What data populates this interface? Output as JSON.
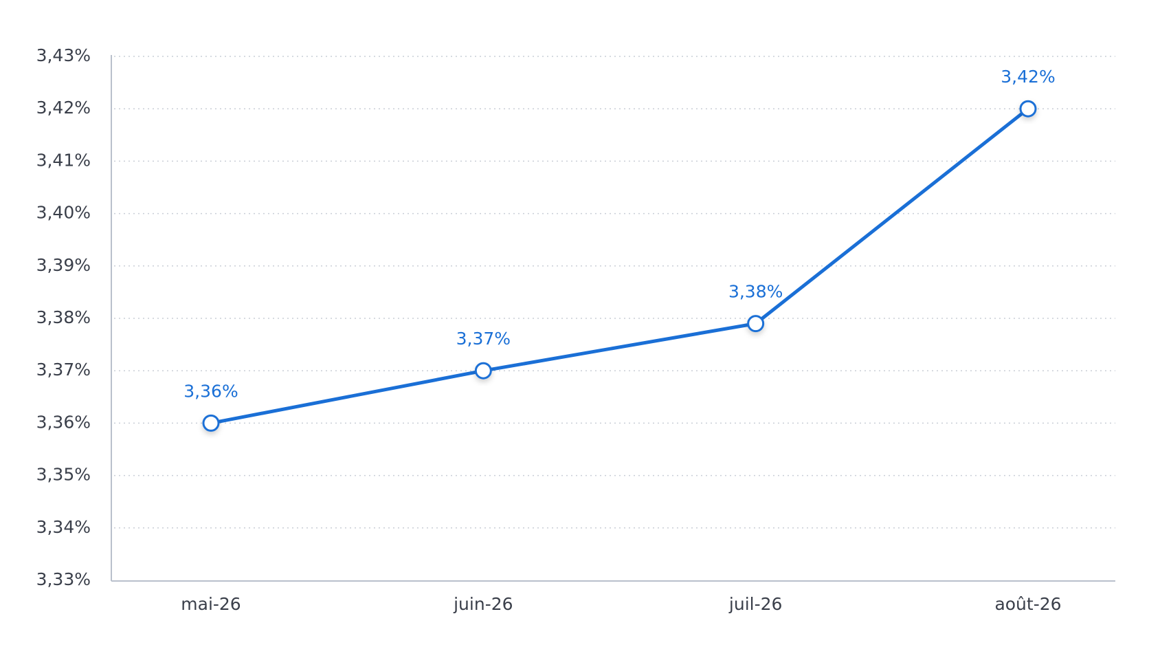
{
  "chart_data": {
    "type": "line",
    "categories": [
      "mai-26",
      "juin-26",
      "juil-26",
      "août-26"
    ],
    "series": [
      {
        "color": "#1a6fd6",
        "values": [
          3.36,
          3.37,
          3.379,
          3.42
        ],
        "value_labels": [
          "3,36%",
          "3,37%",
          "3,38%",
          "3,42%"
        ]
      }
    ],
    "ylim": [
      3.33,
      3.43
    ],
    "yticks": [
      {
        "value": 3.33,
        "label": "3,33%"
      },
      {
        "value": 3.34,
        "label": "3,34%"
      },
      {
        "value": 3.35,
        "label": "3,35%"
      },
      {
        "value": 3.36,
        "label": "3,36%"
      },
      {
        "value": 3.37,
        "label": "3,37%"
      },
      {
        "value": 3.38,
        "label": "3,38%"
      },
      {
        "value": 3.39,
        "label": "3,39%"
      },
      {
        "value": 3.4,
        "label": "3,40%"
      },
      {
        "value": 3.41,
        "label": "3,41%"
      },
      {
        "value": 3.42,
        "label": "3,42%"
      },
      {
        "value": 3.43,
        "label": "3,43%"
      }
    ],
    "grid": true
  }
}
